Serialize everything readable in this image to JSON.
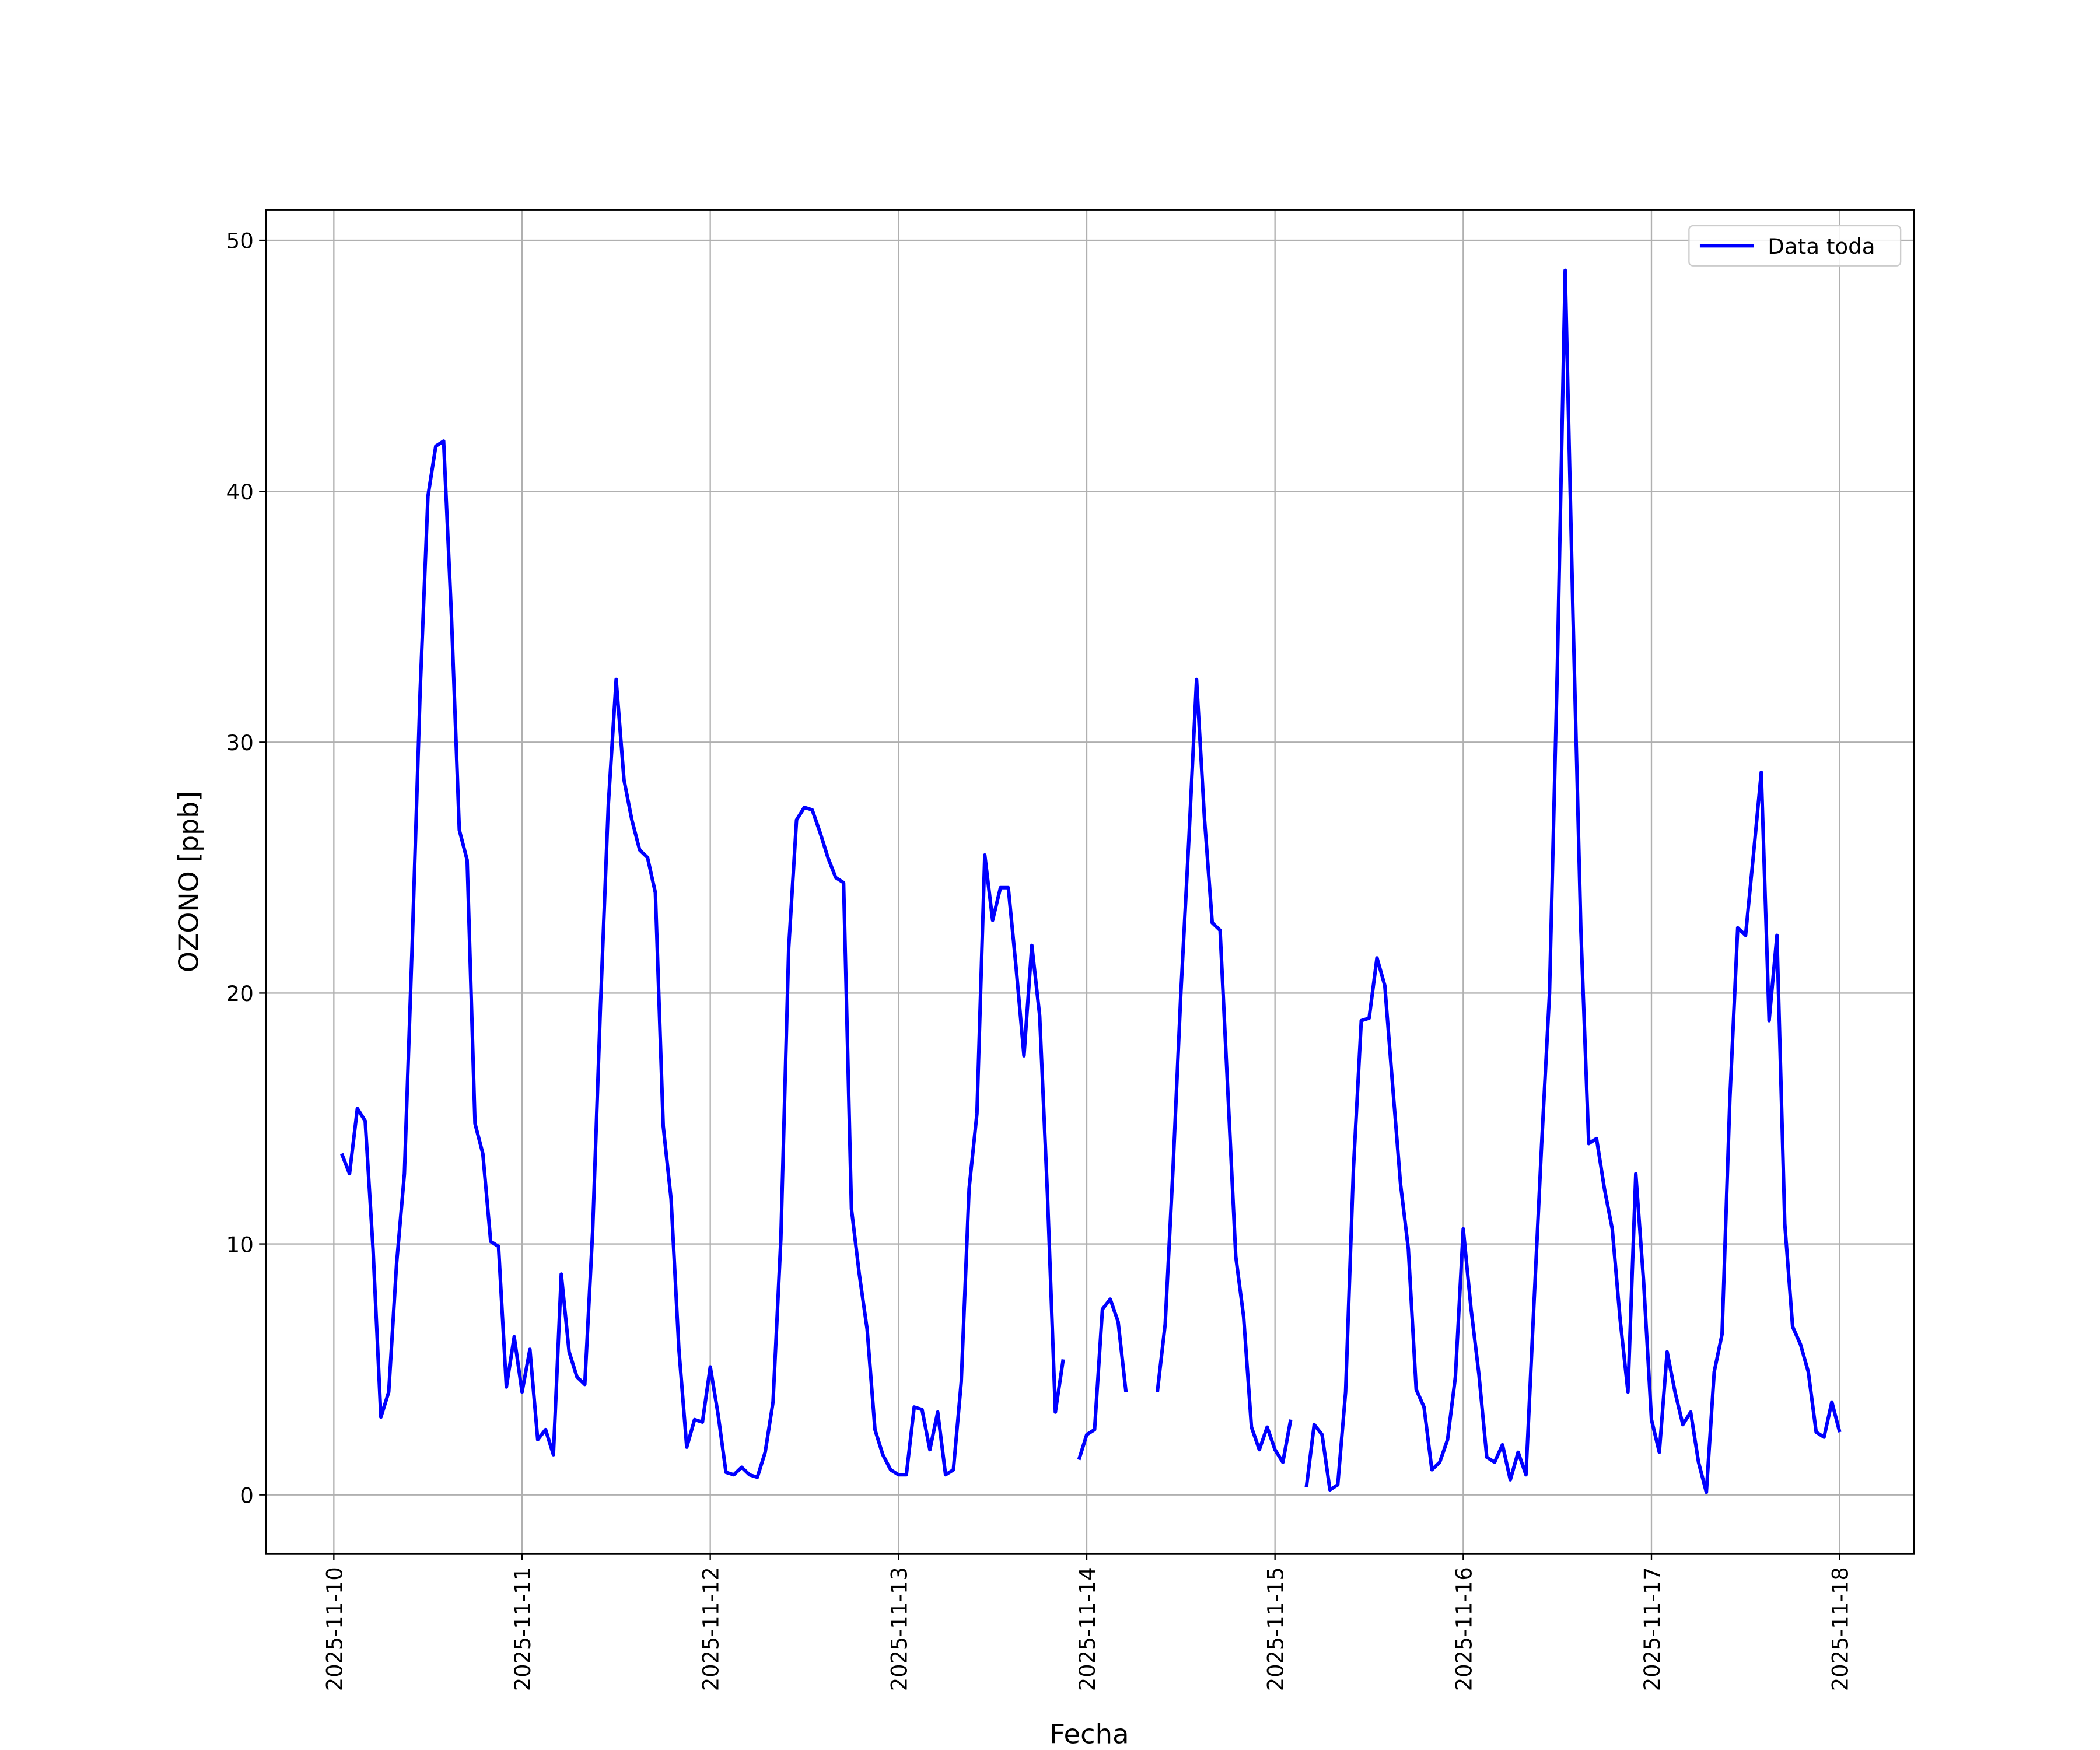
{
  "chart_data": {
    "type": "line",
    "xlabel": "Fecha",
    "ylabel": "OZONO [ppb]",
    "x": [
      "2025-11-10T01:00",
      "2025-11-10T02:00",
      "2025-11-10T03:00",
      "2025-11-10T04:00",
      "2025-11-10T05:00",
      "2025-11-10T06:00",
      "2025-11-10T07:00",
      "2025-11-10T08:00",
      "2025-11-10T09:00",
      "2025-11-10T10:00",
      "2025-11-10T11:00",
      "2025-11-10T12:00",
      "2025-11-10T13:00",
      "2025-11-10T14:00",
      "2025-11-10T15:00",
      "2025-11-10T16:00",
      "2025-11-10T17:00",
      "2025-11-10T18:00",
      "2025-11-10T19:00",
      "2025-11-10T20:00",
      "2025-11-10T21:00",
      "2025-11-10T22:00",
      "2025-11-10T23:00",
      "2025-11-11T00:00",
      "2025-11-11T01:00",
      "2025-11-11T02:00",
      "2025-11-11T03:00",
      "2025-11-11T04:00",
      "2025-11-11T05:00",
      "2025-11-11T06:00",
      "2025-11-11T07:00",
      "2025-11-11T08:00",
      "2025-11-11T09:00",
      "2025-11-11T10:00",
      "2025-11-11T11:00",
      "2025-11-11T12:00",
      "2025-11-11T13:00",
      "2025-11-11T14:00",
      "2025-11-11T15:00",
      "2025-11-11T16:00",
      "2025-11-11T17:00",
      "2025-11-11T18:00",
      "2025-11-11T19:00",
      "2025-11-11T20:00",
      "2025-11-11T21:00",
      "2025-11-11T22:00",
      "2025-11-11T23:00",
      "2025-11-12T00:00",
      "2025-11-12T01:00",
      "2025-11-12T02:00",
      "2025-11-12T03:00",
      "2025-11-12T04:00",
      "2025-11-12T05:00",
      "2025-11-12T06:00",
      "2025-11-12T07:00",
      "2025-11-12T08:00",
      "2025-11-12T09:00",
      "2025-11-12T10:00",
      "2025-11-12T11:00",
      "2025-11-12T12:00",
      "2025-11-12T13:00",
      "2025-11-12T14:00",
      "2025-11-12T15:00",
      "2025-11-12T16:00",
      "2025-11-12T17:00",
      "2025-11-12T18:00",
      "2025-11-12T19:00",
      "2025-11-12T20:00",
      "2025-11-12T21:00",
      "2025-11-12T22:00",
      "2025-11-12T23:00",
      "2025-11-13T00:00",
      "2025-11-13T01:00",
      "2025-11-13T02:00",
      "2025-11-13T03:00",
      "2025-11-13T04:00",
      "2025-11-13T05:00",
      "2025-11-13T06:00",
      "2025-11-13T07:00",
      "2025-11-13T08:00",
      "2025-11-13T09:00",
      "2025-11-13T10:00",
      "2025-11-13T11:00",
      "2025-11-13T12:00",
      "2025-11-13T13:00",
      "2025-11-13T14:00",
      "2025-11-13T15:00",
      "2025-11-13T16:00",
      "2025-11-13T17:00",
      "2025-11-13T18:00",
      "2025-11-13T19:00",
      "2025-11-13T20:00",
      "2025-11-13T21:00",
      "2025-11-13T22:00",
      "2025-11-13T23:00",
      "2025-11-14T00:00",
      "2025-11-14T01:00",
      "2025-11-14T02:00",
      "2025-11-14T03:00",
      "2025-11-14T04:00",
      "2025-11-14T05:00",
      "2025-11-14T06:00",
      "2025-11-14T07:00",
      "2025-11-14T08:00",
      "2025-11-14T09:00",
      "2025-11-14T10:00",
      "2025-11-14T11:00",
      "2025-11-14T12:00",
      "2025-11-14T13:00",
      "2025-11-14T14:00",
      "2025-11-14T15:00",
      "2025-11-14T16:00",
      "2025-11-14T17:00",
      "2025-11-14T18:00",
      "2025-11-14T19:00",
      "2025-11-14T20:00",
      "2025-11-14T21:00",
      "2025-11-14T22:00",
      "2025-11-14T23:00",
      "2025-11-15T00:00",
      "2025-11-15T01:00",
      "2025-11-15T02:00",
      "2025-11-15T03:00",
      "2025-11-15T04:00",
      "2025-11-15T05:00",
      "2025-11-15T06:00",
      "2025-11-15T07:00",
      "2025-11-15T08:00",
      "2025-11-15T09:00",
      "2025-11-15T10:00",
      "2025-11-15T11:00",
      "2025-11-15T12:00",
      "2025-11-15T13:00",
      "2025-11-15T14:00",
      "2025-11-15T15:00",
      "2025-11-15T16:00",
      "2025-11-15T17:00",
      "2025-11-15T18:00",
      "2025-11-15T19:00",
      "2025-11-15T20:00",
      "2025-11-15T21:00",
      "2025-11-15T22:00",
      "2025-11-15T23:00",
      "2025-11-16T00:00",
      "2025-11-16T01:00",
      "2025-11-16T02:00",
      "2025-11-16T03:00",
      "2025-11-16T04:00",
      "2025-11-16T05:00",
      "2025-11-16T06:00",
      "2025-11-16T07:00",
      "2025-11-16T08:00",
      "2025-11-16T09:00",
      "2025-11-16T10:00",
      "2025-11-16T11:00",
      "2025-11-16T12:00",
      "2025-11-16T13:00",
      "2025-11-16T14:00",
      "2025-11-16T15:00",
      "2025-11-16T16:00",
      "2025-11-16T17:00",
      "2025-11-16T18:00",
      "2025-11-16T19:00",
      "2025-11-16T20:00",
      "2025-11-16T21:00",
      "2025-11-16T22:00",
      "2025-11-16T23:00",
      "2025-11-17T00:00",
      "2025-11-17T01:00",
      "2025-11-17T02:00",
      "2025-11-17T03:00",
      "2025-11-17T04:00",
      "2025-11-17T05:00",
      "2025-11-17T06:00",
      "2025-11-17T07:00",
      "2025-11-17T08:00",
      "2025-11-17T09:00",
      "2025-11-17T10:00",
      "2025-11-17T11:00",
      "2025-11-17T12:00",
      "2025-11-17T13:00",
      "2025-11-17T14:00",
      "2025-11-17T15:00",
      "2025-11-17T16:00",
      "2025-11-17T17:00",
      "2025-11-17T18:00",
      "2025-11-17T19:00",
      "2025-11-17T20:00",
      "2025-11-17T21:00",
      "2025-11-17T22:00",
      "2025-11-17T23:00",
      "2025-11-18T00:00"
    ],
    "series": [
      {
        "name": "Data toda",
        "color": "#0000ff",
        "values": [
          13.6,
          12.8,
          15.4,
          14.9,
          9.8,
          3.1,
          4.1,
          9.2,
          12.8,
          22,
          32,
          39.8,
          41.8,
          42,
          35,
          26.5,
          25.3,
          14.8,
          13.6,
          10.1,
          9.9,
          4.3,
          6.3,
          4.1,
          5.8,
          2.2,
          2.6,
          1.6,
          8.8,
          5.7,
          4.7,
          4.4,
          10.5,
          19.5,
          27.5,
          32.5,
          28.5,
          26.9,
          25.7,
          25.4,
          24,
          14.7,
          11.8,
          5.8,
          1.9,
          3,
          2.9,
          5.1,
          3.2,
          0.9,
          0.8,
          1.1,
          0.8,
          0.7,
          1.7,
          3.7,
          10.2,
          21.8,
          26.9,
          27.4,
          27.3,
          26.4,
          25.4,
          24.6,
          24.4,
          11.4,
          8.8,
          6.6,
          2.6,
          1.6,
          1,
          0.8,
          0.8,
          3.5,
          3.4,
          1.8,
          3.3,
          0.8,
          1,
          4.5,
          12.2,
          15.2,
          25.5,
          22.9,
          24.2,
          24.2,
          21,
          17.5,
          21.9,
          19.1,
          11.9,
          3.3,
          5.4,
          null,
          1.4,
          2.4,
          2.6,
          7.4,
          7.8,
          6.9,
          4.1,
          null,
          null,
          null,
          4.1,
          6.8,
          13,
          20,
          26,
          32.5,
          27,
          22.8,
          22.5,
          16,
          9.5,
          7.1,
          2.7,
          1.8,
          2.7,
          1.8,
          1.3,
          3,
          null,
          0.3,
          2.8,
          2.4,
          0.2,
          0.4,
          4.1,
          13,
          18.9,
          19,
          21.4,
          20.3,
          16.3,
          12.4,
          9.8,
          4.2,
          3.5,
          1,
          1.3,
          2.2,
          4.7,
          10.6,
          7.4,
          4.8,
          1.5,
          1.3,
          2,
          0.6,
          1.7,
          0.8,
          7.5,
          14,
          20,
          33,
          48.8,
          35,
          22.5,
          14,
          14.2,
          12.2,
          10.6,
          7,
          4.1,
          12.8,
          8.5,
          3,
          1.7,
          5.7,
          4.1,
          2.8,
          3.3,
          1.3,
          0.1,
          4.9,
          6.4,
          15.8,
          22.6,
          22.3,
          25.5,
          28.8,
          18.9,
          22.3,
          10.8,
          6.7,
          6,
          4.9,
          2.5,
          2.3,
          3.7,
          2.5
        ]
      }
    ],
    "xlim": [
      "2025-11-09T15:20",
      "2025-11-18T09:30"
    ],
    "xticks": [
      "2025-11-10",
      "2025-11-11",
      "2025-11-12",
      "2025-11-13",
      "2025-11-14",
      "2025-11-15",
      "2025-11-16",
      "2025-11-17",
      "2025-11-18"
    ],
    "ylim": [
      -2.34,
      51.22
    ],
    "yticks": [
      0,
      10,
      20,
      30,
      40,
      50
    ],
    "grid": true,
    "legend": "upper right"
  }
}
